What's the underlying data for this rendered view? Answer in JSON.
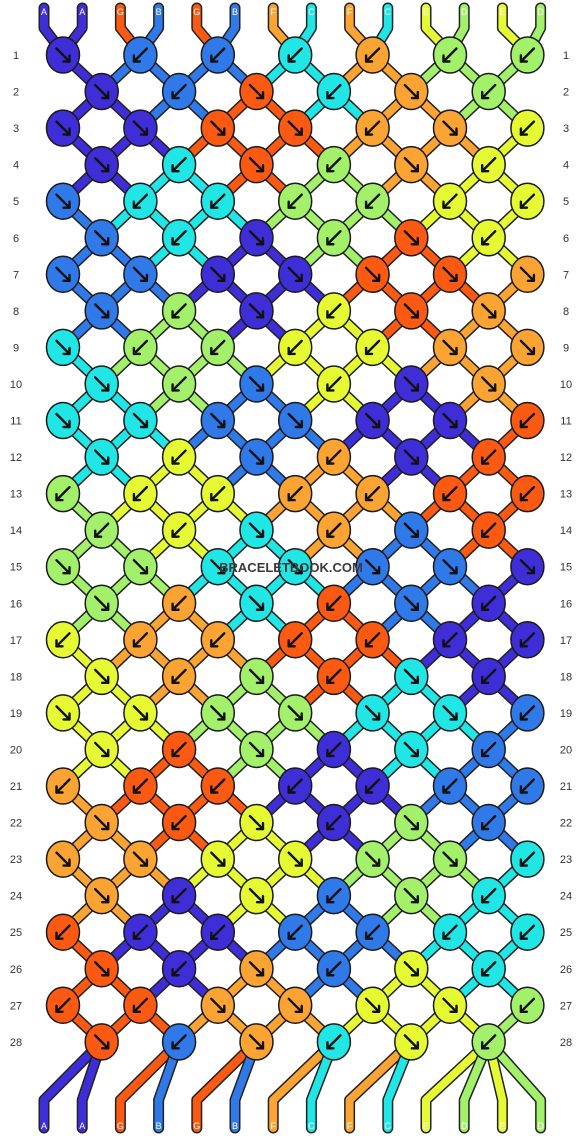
{
  "watermark": "BRACELETBOOK.COM",
  "colors": {
    "A": "#3f2dd8",
    "B": "#2f79e8",
    "C": "#21e6e6",
    "D": "#a3f06a",
    "E": "#e6fa33",
    "F": "#fca433",
    "G": "#fc5a12"
  },
  "strand_letters": [
    "A",
    "A",
    "G",
    "B",
    "G",
    "B",
    "F",
    "C",
    "F",
    "C",
    "E",
    "D",
    "E",
    "D"
  ],
  "row_numbers": [
    "1",
    "2",
    "3",
    "4",
    "5",
    "6",
    "7",
    "8",
    "9",
    "10",
    "11",
    "12",
    "13",
    "14",
    "15",
    "16",
    "17",
    "18",
    "19",
    "20",
    "21",
    "22",
    "23",
    "24",
    "25",
    "26",
    "27",
    "28"
  ],
  "knot_rows": [
    [
      "A:se",
      "B:sw",
      "B:sw",
      "C:sw",
      "F:sw",
      "D:sw",
      "D:sw"
    ],
    [
      "A:se",
      "B:sw",
      "G:se",
      "C:sw",
      "F:se",
      "D:sw"
    ],
    [
      "A:se",
      "A:se",
      "G:se",
      "G:se",
      "F:sw",
      "F:se",
      "E:sw"
    ],
    [
      "A:se",
      "C:sw",
      "G:se",
      "D:sw",
      "F:se",
      "E:sw"
    ],
    [
      "B:se",
      "C:sw",
      "C:sw",
      "D:sw",
      "D:sw",
      "E:sw",
      "E:sw"
    ],
    [
      "B:se",
      "C:sw",
      "A:se",
      "D:sw",
      "G:se",
      "E:sw"
    ],
    [
      "B:se",
      "B:se",
      "A:se",
      "A:se",
      "G:se",
      "G:se",
      "F:se"
    ],
    [
      "B:se",
      "D:sw",
      "A:se",
      "E:sw",
      "G:se",
      "F:se"
    ],
    [
      "C:se",
      "D:sw",
      "D:sw",
      "E:sw",
      "E:sw",
      "F:se",
      "F:se"
    ],
    [
      "C:se",
      "D:sw",
      "B:se",
      "E:sw",
      "A:se",
      "F:se"
    ],
    [
      "C:se",
      "C:se",
      "B:se",
      "B:se",
      "A:se",
      "A:se",
      "G:sw"
    ],
    [
      "C:se",
      "E:sw",
      "B:se",
      "F:sw",
      "A:se",
      "G:sw"
    ],
    [
      "D:sw",
      "E:sw",
      "E:sw",
      "F:sw",
      "F:sw",
      "G:sw",
      "G:sw"
    ],
    [
      "D:sw",
      "E:sw",
      "C:se",
      "F:sw",
      "B:se",
      "G:sw"
    ],
    [
      "D:se",
      "D:se",
      "C:se",
      "C:se",
      "B:se",
      "B:se",
      "A:se"
    ],
    [
      "D:se",
      "F:sw",
      "C:se",
      "G:sw",
      "B:se",
      "A:sw"
    ],
    [
      "E:sw",
      "F:sw",
      "F:sw",
      "G:sw",
      "G:sw",
      "A:sw",
      "A:sw"
    ],
    [
      "E:se",
      "F:sw",
      "D:se",
      "G:sw",
      "C:se",
      "A:sw"
    ],
    [
      "E:se",
      "E:se",
      "D:se",
      "D:se",
      "C:se",
      "C:se",
      "B:sw"
    ],
    [
      "E:se",
      "G:sw",
      "D:se",
      "A:sw",
      "C:se",
      "B:sw"
    ],
    [
      "F:sw",
      "G:sw",
      "G:sw",
      "A:sw",
      "A:sw",
      "B:sw",
      "B:sw"
    ],
    [
      "F:se",
      "G:sw",
      "E:se",
      "A:sw",
      "D:se",
      "B:sw"
    ],
    [
      "F:se",
      "F:se",
      "E:se",
      "E:se",
      "D:se",
      "D:se",
      "C:sw"
    ],
    [
      "F:se",
      "A:sw",
      "E:se",
      "B:sw",
      "D:se",
      "C:sw"
    ],
    [
      "G:sw",
      "A:sw",
      "A:sw",
      "B:sw",
      "B:sw",
      "C:sw",
      "C:sw"
    ],
    [
      "G:se",
      "A:sw",
      "F:se",
      "B:sw",
      "E:se",
      "C:sw"
    ],
    [
      "G:sw",
      "G:sw",
      "F:se",
      "F:se",
      "E:se",
      "E:se",
      "D:sw"
    ],
    [
      "G:se",
      "B:sw",
      "F:se",
      "C:sw",
      "E:se",
      "D:sw"
    ]
  ]
}
